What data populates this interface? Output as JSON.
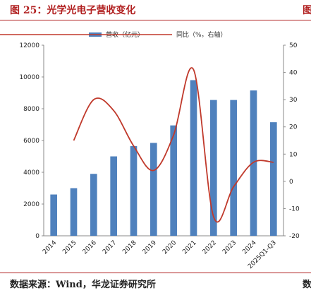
{
  "header": {
    "title": "图 25：光学光电子营收变化",
    "clipped_right": "图"
  },
  "footer": {
    "source": "数据来源：Wind，华龙证券研究所",
    "clipped_right": "数"
  },
  "colors": {
    "bar": "#4f81bd",
    "line": "#c0392b",
    "accent": "#b22222"
  },
  "chart_data": {
    "type": "bar",
    "categories": [
      "2014",
      "2015",
      "2016",
      "2017",
      "2018",
      "2019",
      "2020",
      "2021",
      "2022",
      "2023",
      "2024",
      "2025Q1-Q3"
    ],
    "series": [
      {
        "name": "营收（亿元）",
        "type": "bar",
        "axis": "left",
        "values": [
          2600,
          3000,
          3900,
          5000,
          5650,
          5850,
          6950,
          9800,
          8550,
          8550,
          9150,
          7150
        ]
      },
      {
        "name": "同比（%，右轴）",
        "type": "line",
        "axis": "right",
        "values": [
          null,
          15,
          30,
          26,
          13,
          4,
          17,
          41,
          -13,
          -2,
          7,
          7
        ]
      }
    ],
    "y_left": {
      "ylim": [
        0,
        12000
      ],
      "ticks": [
        "0",
        "2000",
        "4000",
        "6000",
        "8000",
        "10000",
        "12000"
      ]
    },
    "y_right": {
      "ylim": [
        -20,
        50
      ],
      "ticks": [
        "-20",
        "-10",
        "0",
        "10",
        "20",
        "30",
        "40",
        "50"
      ]
    },
    "legend_position": "top-center",
    "grid": false
  }
}
